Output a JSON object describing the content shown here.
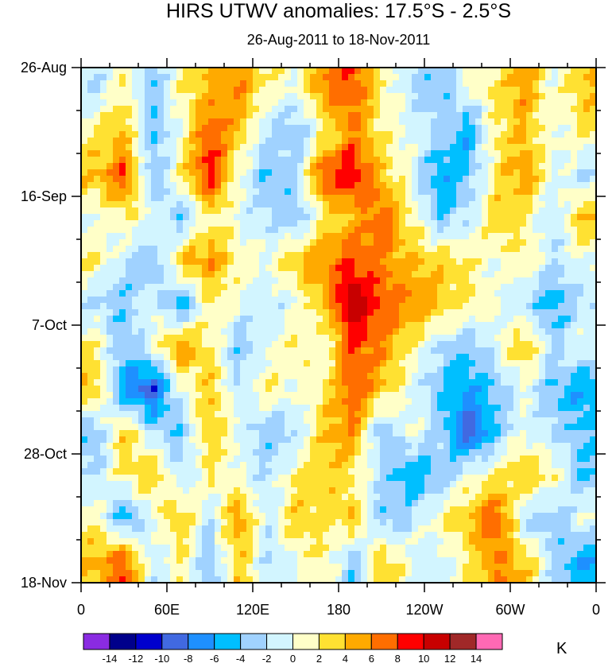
{
  "chart_data": {
    "type": "heatmap",
    "title": "HIRS UTWV anomalies: 17.5°S - 2.5°S",
    "subtitle": "26-Aug-2011 to 18-Nov-2011",
    "xlabel": "",
    "ylabel": "",
    "x_ticks": [
      "0",
      "60E",
      "120E",
      "180",
      "120W",
      "60W",
      "0"
    ],
    "x_tick_values": [
      0,
      60,
      120,
      180,
      240,
      300,
      360
    ],
    "y_ticks": [
      "26-Aug",
      "16-Sep",
      "7-Oct",
      "28-Oct",
      "18-Nov"
    ],
    "y_tick_days": [
      0,
      21,
      42,
      63,
      84
    ],
    "xlim": [
      0,
      360
    ],
    "ylim_days": [
      0,
      84
    ],
    "grid_lon_centers": [
      10,
      30,
      50,
      70,
      90,
      110,
      130,
      150,
      170,
      190,
      210,
      230,
      250,
      270,
      290,
      310,
      330,
      350
    ],
    "grid_day_centers": [
      3.5,
      10.5,
      17.5,
      24.5,
      31.5,
      38.5,
      45.5,
      52.5,
      59.5,
      66.5,
      73.5,
      80.5
    ],
    "values": [
      [
        -2,
        2,
        -4,
        2,
        4,
        6,
        2,
        0,
        6,
        8,
        2,
        -2,
        -4,
        0,
        2,
        6,
        0,
        4
      ],
      [
        2,
        4,
        -4,
        0,
        8,
        4,
        -2,
        -4,
        2,
        6,
        2,
        0,
        -2,
        -6,
        2,
        4,
        0,
        2
      ],
      [
        4,
        8,
        -4,
        2,
        10,
        0,
        -4,
        -2,
        8,
        10,
        4,
        0,
        -6,
        -4,
        2,
        6,
        0,
        -2
      ],
      [
        0,
        2,
        0,
        -4,
        2,
        0,
        -2,
        -4,
        2,
        4,
        8,
        2,
        -4,
        -2,
        4,
        2,
        -2,
        4
      ],
      [
        2,
        -2,
        -4,
        4,
        6,
        2,
        0,
        4,
        6,
        8,
        6,
        4,
        4,
        2,
        0,
        2,
        -2,
        0
      ],
      [
        -2,
        -4,
        0,
        -6,
        2,
        0,
        -2,
        0,
        4,
        12,
        8,
        6,
        4,
        2,
        0,
        -2,
        -6,
        -2
      ],
      [
        2,
        -4,
        0,
        6,
        2,
        -4,
        0,
        2,
        0,
        8,
        6,
        2,
        -2,
        -4,
        0,
        4,
        -2,
        0
      ],
      [
        4,
        -6,
        -10,
        0,
        4,
        -2,
        2,
        0,
        2,
        8,
        4,
        0,
        -4,
        -6,
        -4,
        0,
        -4,
        -6
      ],
      [
        -4,
        4,
        -2,
        -4,
        4,
        0,
        -4,
        -2,
        4,
        6,
        -4,
        0,
        -2,
        -10,
        -4,
        0,
        -2,
        -4
      ],
      [
        -2,
        2,
        4,
        -2,
        2,
        0,
        -2,
        2,
        4,
        2,
        -2,
        -6,
        -4,
        0,
        2,
        4,
        2,
        -4
      ],
      [
        2,
        -6,
        0,
        4,
        -2,
        6,
        -2,
        4,
        2,
        4,
        -4,
        -2,
        2,
        4,
        8,
        -2,
        -4,
        0
      ],
      [
        4,
        8,
        -2,
        2,
        -4,
        4,
        -2,
        0,
        2,
        -4,
        4,
        0,
        -2,
        2,
        6,
        4,
        -2,
        -6
      ]
    ],
    "colorbar": {
      "unit": "K",
      "levels": [
        -14,
        -12,
        -10,
        -8,
        -6,
        -4,
        -2,
        0,
        2,
        4,
        6,
        8,
        10,
        12,
        14
      ],
      "level_labels": [
        "-14",
        "-12",
        "-10",
        "-8",
        "-6",
        "-4",
        "-2",
        "0",
        "2",
        "4",
        "6",
        "8",
        "10",
        "12",
        "14"
      ],
      "colors": [
        "#8a2be2",
        "#00008b",
        "#0000cd",
        "#4169e1",
        "#1e90ff",
        "#00bfff",
        "#a0d2ff",
        "#d2f5ff",
        "#ffffc8",
        "#ffe132",
        "#ffaa00",
        "#ff6e00",
        "#ff0000",
        "#c80000",
        "#a02828",
        "#ff69b4"
      ]
    }
  }
}
